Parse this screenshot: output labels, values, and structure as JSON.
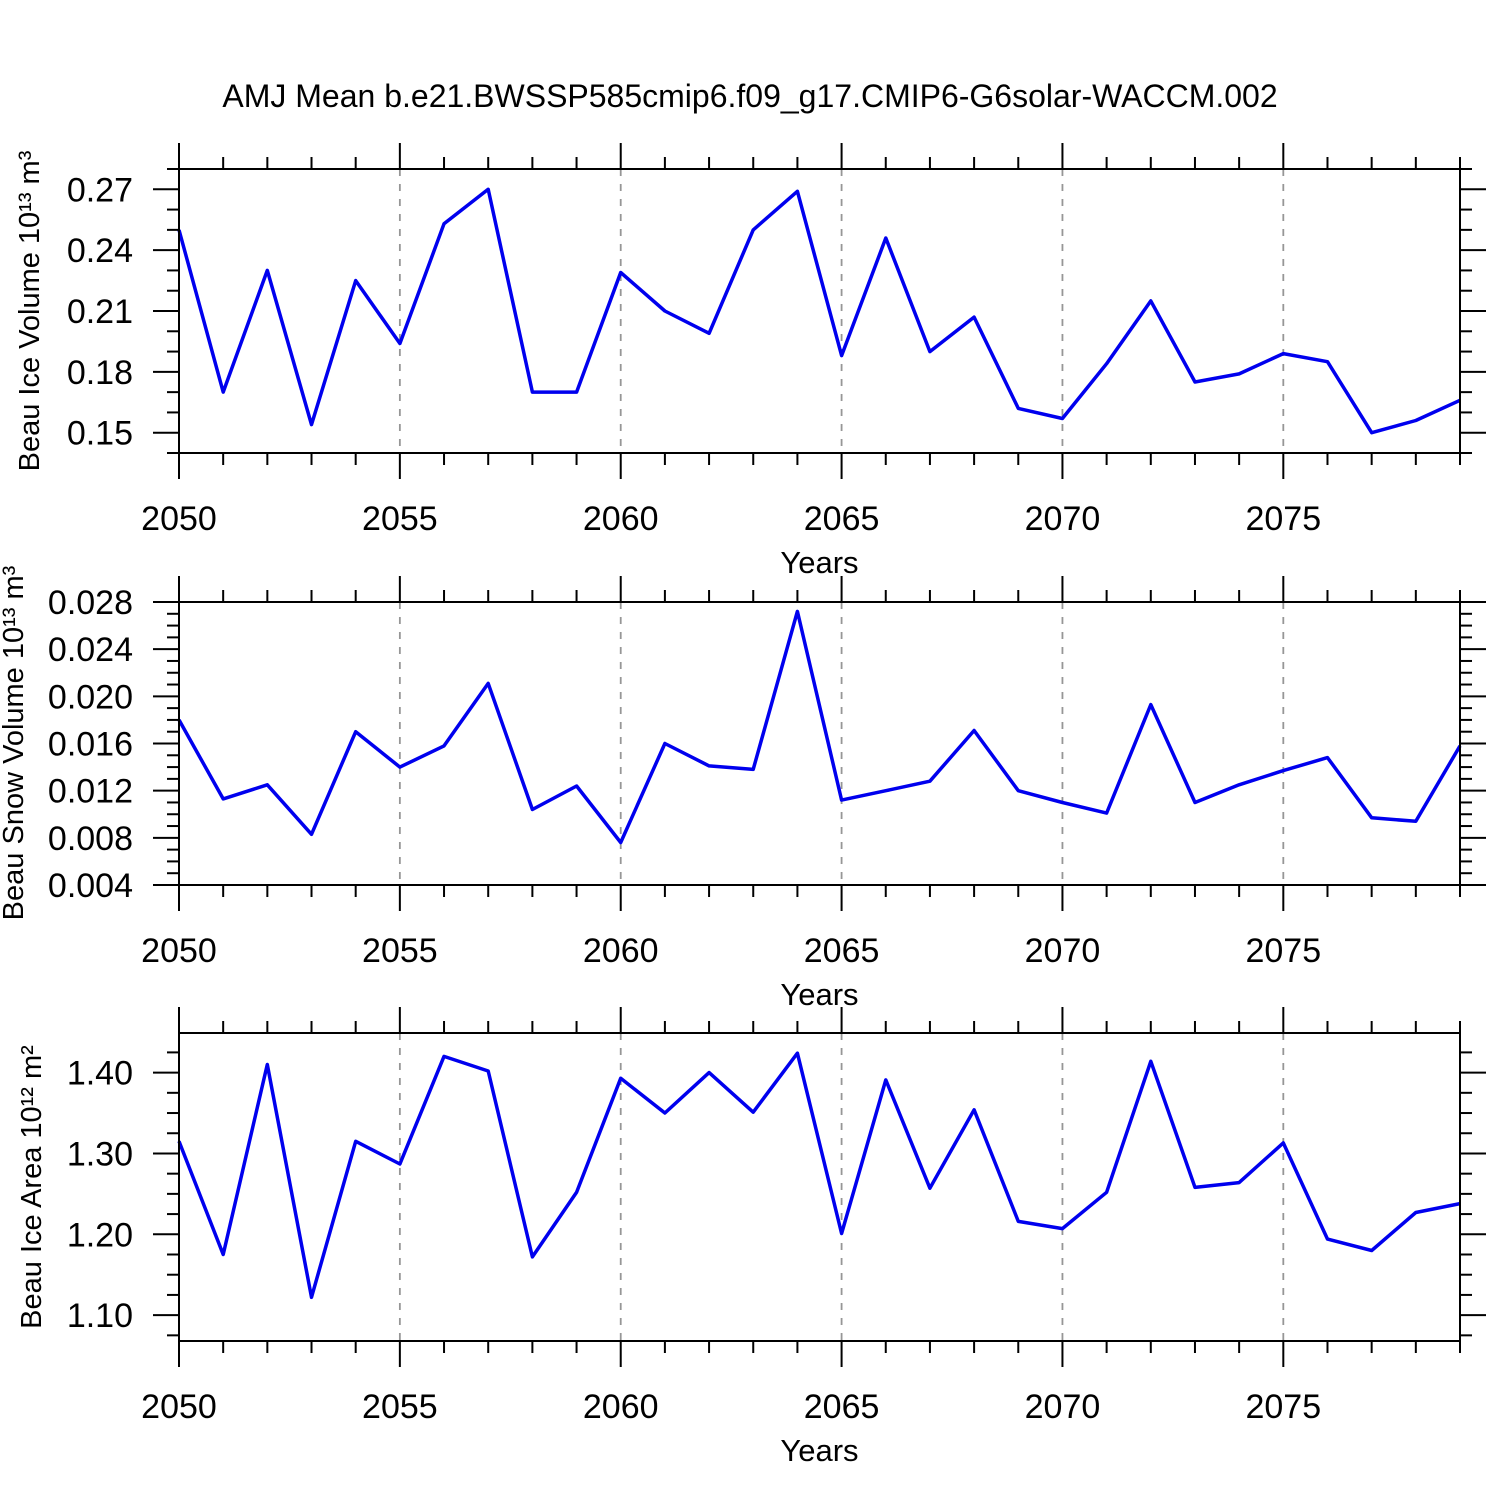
{
  "title": "AMJ Mean b.e21.BWSSP585cmip6.f09_g17.CMIP6-G6solar-WACCM.002",
  "xlabel": "Years",
  "colors": {
    "line": "#0000ee",
    "grid": "#969696",
    "axis": "#000000",
    "background": "#ffffff"
  },
  "grid_years": [
    2055,
    2060,
    2065,
    2070,
    2075
  ],
  "chart_data": [
    {
      "type": "line",
      "name": "beau-ice-volume",
      "ylabel": "Beau Ice Volume 10¹³ m³",
      "xlabel": "Years",
      "xlim": [
        2050,
        2079
      ],
      "ylim": [
        0.14,
        0.28
      ],
      "x": [
        2050,
        2051,
        2052,
        2053,
        2054,
        2055,
        2056,
        2057,
        2058,
        2059,
        2060,
        2061,
        2062,
        2063,
        2064,
        2065,
        2066,
        2067,
        2068,
        2069,
        2070,
        2071,
        2072,
        2073,
        2074,
        2075,
        2076,
        2077,
        2078,
        2079
      ],
      "y": [
        0.25,
        0.17,
        0.23,
        0.154,
        0.225,
        0.194,
        0.253,
        0.27,
        0.17,
        0.17,
        0.229,
        0.21,
        0.199,
        0.25,
        0.269,
        0.188,
        0.246,
        0.19,
        0.207,
        0.162,
        0.157,
        0.184,
        0.215,
        0.175,
        0.179,
        0.189,
        0.185,
        0.15,
        0.156,
        0.166
      ],
      "yticks": [
        0.15,
        0.18,
        0.21,
        0.24,
        0.27
      ],
      "ytick_labels": [
        "0.15",
        "0.18",
        "0.21",
        "0.24",
        "0.27"
      ],
      "yticks_minor": [
        0.14,
        0.16,
        0.17,
        0.19,
        0.2,
        0.22,
        0.23,
        0.25,
        0.26,
        0.28
      ],
      "xticks": [
        2050,
        2055,
        2060,
        2065,
        2070,
        2075
      ],
      "xtick_labels": [
        "2050",
        "2055",
        "2060",
        "2065",
        "2070",
        "2075"
      ]
    },
    {
      "type": "line",
      "name": "beau-snow-volume",
      "ylabel": "Beau Snow Volume 10¹³ m³",
      "xlabel": "Years",
      "xlim": [
        2050,
        2079
      ],
      "ylim": [
        0.004,
        0.028
      ],
      "x": [
        2050,
        2051,
        2052,
        2053,
        2054,
        2055,
        2056,
        2057,
        2058,
        2059,
        2060,
        2061,
        2062,
        2063,
        2064,
        2065,
        2066,
        2067,
        2068,
        2069,
        2070,
        2071,
        2072,
        2073,
        2074,
        2075,
        2076,
        2077,
        2078,
        2079
      ],
      "y": [
        0.018,
        0.0113,
        0.0125,
        0.0083,
        0.017,
        0.014,
        0.0158,
        0.0211,
        0.0104,
        0.0124,
        0.0076,
        0.016,
        0.0141,
        0.0138,
        0.0272,
        0.0112,
        0.012,
        0.0128,
        0.0171,
        0.012,
        0.011,
        0.0101,
        0.0193,
        0.011,
        0.0125,
        0.0137,
        0.0148,
        0.0097,
        0.0094,
        0.0158
      ],
      "yticks": [
        0.004,
        0.008,
        0.012,
        0.016,
        0.02,
        0.024,
        0.028
      ],
      "ytick_labels": [
        "0.004",
        "0.008",
        "0.012",
        "0.016",
        "0.020",
        "0.024",
        "0.028"
      ],
      "yticks_minor": [
        0.005,
        0.006,
        0.007,
        0.009,
        0.01,
        0.011,
        0.013,
        0.014,
        0.015,
        0.017,
        0.018,
        0.019,
        0.021,
        0.022,
        0.023,
        0.025,
        0.026,
        0.027
      ],
      "xticks": [
        2050,
        2055,
        2060,
        2065,
        2070,
        2075
      ],
      "xtick_labels": [
        "2050",
        "2055",
        "2060",
        "2065",
        "2070",
        "2075"
      ]
    },
    {
      "type": "line",
      "name": "beau-ice-area",
      "ylabel": "Beau Ice Area 10¹² m²",
      "xlabel": "Years",
      "xlim": [
        2050,
        2079
      ],
      "ylim": [
        1.068,
        1.449
      ],
      "x": [
        2050,
        2051,
        2052,
        2053,
        2054,
        2055,
        2056,
        2057,
        2058,
        2059,
        2060,
        2061,
        2062,
        2063,
        2064,
        2065,
        2066,
        2067,
        2068,
        2069,
        2070,
        2071,
        2072,
        2073,
        2074,
        2075,
        2076,
        2077,
        2078,
        2079
      ],
      "y": [
        1.315,
        1.175,
        1.41,
        1.122,
        1.315,
        1.287,
        1.42,
        1.402,
        1.172,
        1.252,
        1.393,
        1.35,
        1.4,
        1.351,
        1.424,
        1.201,
        1.391,
        1.257,
        1.354,
        1.216,
        1.207,
        1.252,
        1.414,
        1.258,
        1.264,
        1.313,
        1.194,
        1.18,
        1.227,
        1.238
      ],
      "yticks": [
        1.1,
        1.2,
        1.3,
        1.4
      ],
      "ytick_labels": [
        "1.10",
        "1.20",
        "1.30",
        "1.40"
      ],
      "yticks_minor": [
        1.075,
        1.125,
        1.15,
        1.175,
        1.225,
        1.25,
        1.275,
        1.325,
        1.35,
        1.375,
        1.425
      ],
      "xticks": [
        2050,
        2055,
        2060,
        2065,
        2070,
        2075
      ],
      "xtick_labels": [
        "2050",
        "2055",
        "2060",
        "2065",
        "2070",
        "2075"
      ]
    }
  ]
}
